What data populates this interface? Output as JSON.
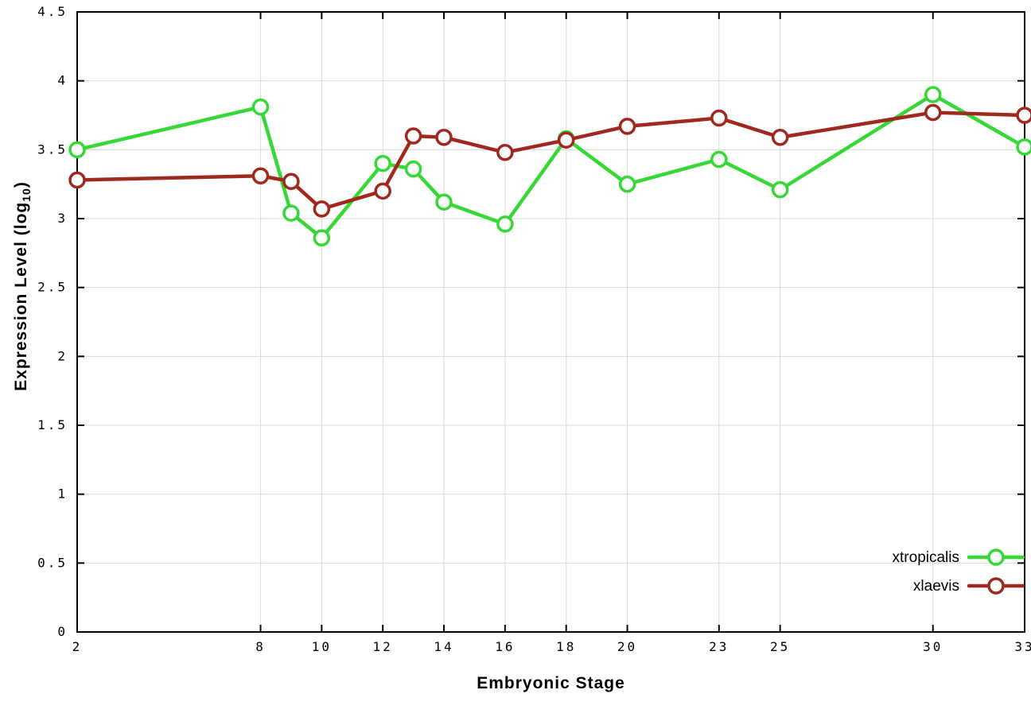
{
  "chart_data": {
    "type": "line",
    "x": [
      2,
      8,
      9,
      10,
      12,
      13,
      14,
      16,
      18,
      20,
      23,
      25,
      30,
      33
    ],
    "series": [
      {
        "name": "xtropicalis",
        "color": "#35d835",
        "values": [
          3.5,
          3.81,
          3.04,
          2.86,
          3.4,
          3.36,
          3.12,
          2.96,
          3.58,
          3.25,
          3.43,
          3.21,
          3.9,
          3.52
        ]
      },
      {
        "name": "xlaevis",
        "color": "#a0281e",
        "values": [
          3.28,
          3.31,
          3.27,
          3.07,
          3.2,
          3.6,
          3.59,
          3.48,
          3.57,
          3.67,
          3.73,
          3.59,
          3.77,
          3.75
        ]
      }
    ],
    "title": "",
    "xlabel": "Embryonic Stage",
    "ylabel": "Expression Level (log10)",
    "ylabel_parts": {
      "main": "Expression Level (log",
      "sub": "10",
      "end": ")"
    },
    "xlim": [
      2,
      33
    ],
    "ylim": [
      0,
      4.5
    ],
    "xticks": [
      2,
      8,
      10,
      12,
      14,
      16,
      18,
      20,
      23,
      25,
      30,
      33
    ],
    "xtick_labels": [
      "2",
      "8",
      "10",
      "12",
      "14",
      "16",
      "18",
      "20",
      "23",
      "25",
      "30",
      "33"
    ],
    "yticks": [
      0,
      0.5,
      1,
      1.5,
      2,
      2.5,
      3,
      3.5,
      4,
      4.5
    ],
    "ytick_labels": [
      "0",
      "0.5",
      "1",
      "1.5",
      "2",
      "2.5",
      "3",
      "3.5",
      "4",
      "4.5"
    ],
    "grid": true,
    "legend_position": "bottom-right",
    "legend_entries": [
      {
        "label": "xtropicalis"
      },
      {
        "label": "xlaevis"
      }
    ],
    "colors": {
      "grid": "#d9d9d9",
      "border": "#000000",
      "background": "#ffffff",
      "tick_text": "#000000"
    }
  }
}
